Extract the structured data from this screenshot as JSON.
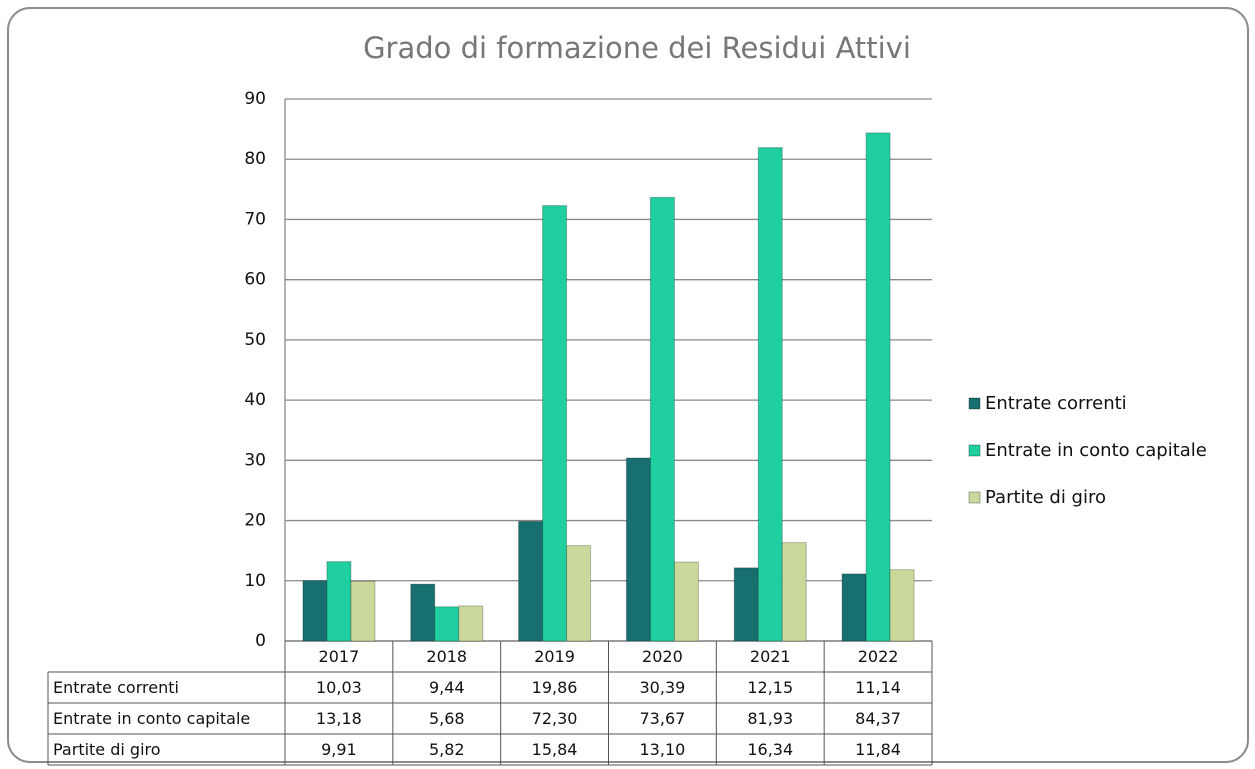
{
  "chart_data": {
    "type": "bar",
    "title": "Grado di formazione dei Residui Attivi",
    "categories": [
      "2017",
      "2018",
      "2019",
      "2020",
      "2021",
      "2022"
    ],
    "series": [
      {
        "name": "Entrate correnti",
        "color": "#17706f",
        "values": [
          10.03,
          9.44,
          19.86,
          30.39,
          12.15,
          11.14
        ],
        "value_labels": [
          "10,03",
          "9,44",
          "19,86",
          "30,39",
          "12,15",
          "11,14"
        ]
      },
      {
        "name": "Entrate in conto capitale",
        "color": "#1fcf9f",
        "values": [
          13.18,
          5.68,
          72.3,
          73.67,
          81.93,
          84.37
        ],
        "value_labels": [
          "13,18",
          "5,68",
          "72,30",
          "73,67",
          "81,93",
          "84,37"
        ]
      },
      {
        "name": "Partite di giro",
        "color": "#c9d99b",
        "values": [
          9.91,
          5.82,
          15.84,
          13.1,
          16.34,
          11.84
        ],
        "value_labels": [
          "9,91",
          "5,82",
          "15,84",
          "13,10",
          "16,34",
          "11,84"
        ]
      }
    ],
    "ylim": [
      0,
      90
    ],
    "yticks": [
      0,
      10,
      20,
      30,
      40,
      50,
      60,
      70,
      80,
      90
    ],
    "grid": true,
    "legend": "right"
  }
}
